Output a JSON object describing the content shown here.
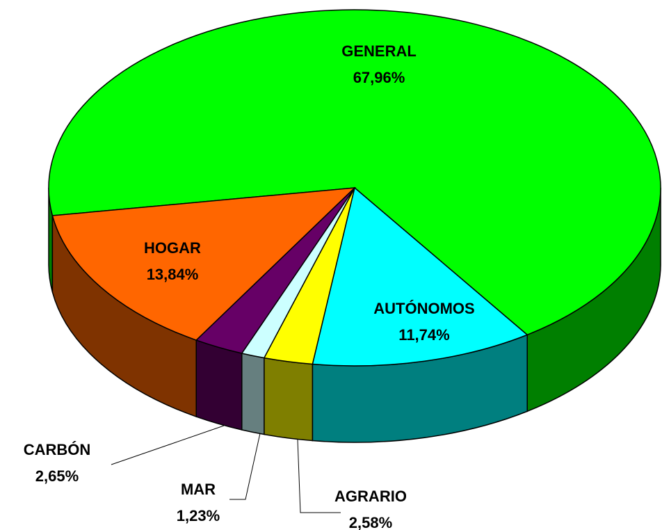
{
  "chart_data": {
    "type": "pie",
    "categories": [
      "GENERAL",
      "AUTÓNOMOS",
      "AGRARIO",
      "MAR",
      "CARBÓN",
      "HOGAR"
    ],
    "values": [
      67.96,
      11.74,
      2.58,
      1.23,
      2.65,
      13.84
    ],
    "value_labels": [
      "67,96%",
      "11,74%",
      "2,58%",
      "1,23%",
      "2,65%",
      "13,84%"
    ],
    "colors": [
      "#00ff00",
      "#00ffff",
      "#ffff00",
      "#ccffff",
      "#660066",
      "#ff6600"
    ]
  }
}
